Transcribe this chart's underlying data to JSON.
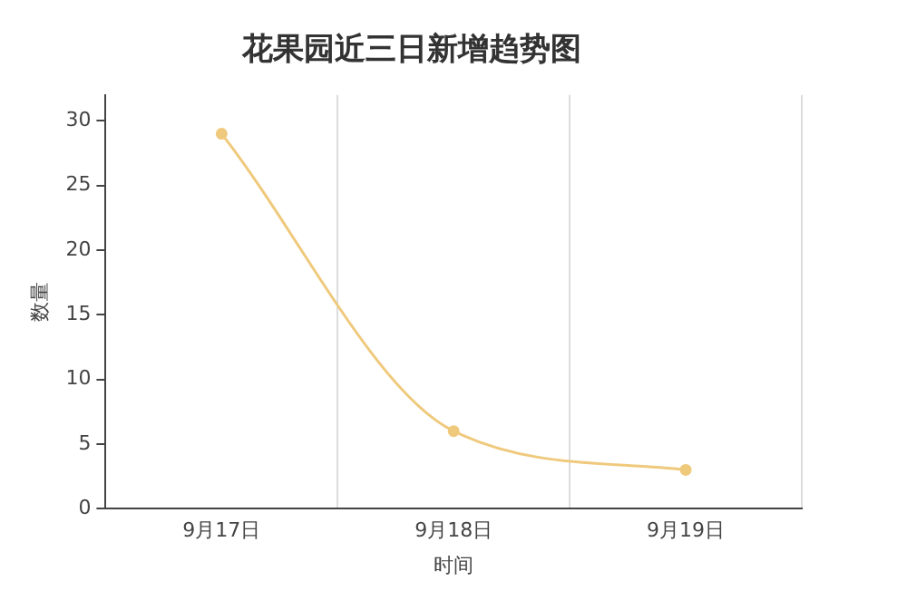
{
  "chart_data": {
    "type": "line",
    "title": "花果园近三日新增趋势图",
    "xlabel": "时间",
    "ylabel": "数量",
    "categories": [
      "9月17日",
      "9月18日",
      "9月19日"
    ],
    "series": [
      {
        "color": "#efc97c",
        "values": [
          29,
          6,
          3
        ]
      }
    ],
    "ylim": [
      0,
      32
    ],
    "yticks": [
      0,
      5,
      10,
      15,
      20,
      25,
      30
    ],
    "grid": "x",
    "legend": false,
    "marker": "circle",
    "line_style": "solid"
  }
}
